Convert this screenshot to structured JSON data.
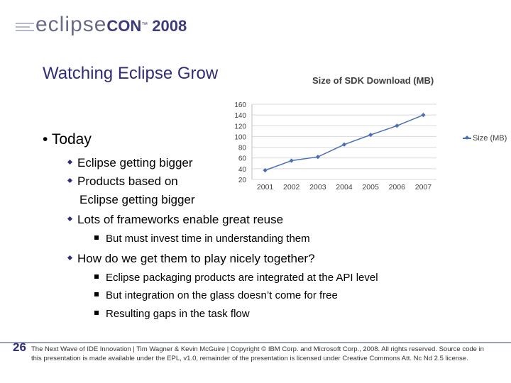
{
  "header": {
    "logo_eclipse": "eclipse",
    "logo_con": "CON",
    "logo_tm": "™",
    "logo_year": "2008"
  },
  "slide": {
    "title": "Watching Eclipse Grow",
    "bullets": {
      "today": "Today",
      "sub1": "Eclipse getting bigger",
      "sub2_line1": "Products based on",
      "sub2_line2": "Eclipse getting bigger",
      "sub3": "Lots of frameworks enable great reuse",
      "sub3_a": "But must invest time in understanding them",
      "sub4": "How do we get them to play nicely together?",
      "sub4_a": "Eclipse packaging products are integrated at the API level",
      "sub4_b": "But integration on the glass doesn’t come for free",
      "sub4_c": "Resulting gaps in the task flow"
    }
  },
  "chart_data": {
    "type": "line",
    "title": "Size of SDK Download (MB)",
    "categories": [
      "2001",
      "2002",
      "2003",
      "2004",
      "2005",
      "2006",
      "2007"
    ],
    "series": [
      {
        "name": "Size (MB)",
        "values": [
          37,
          55,
          62,
          85,
          103,
          120,
          140
        ]
      }
    ],
    "yticks": [
      20,
      40,
      60,
      80,
      100,
      120,
      140,
      160
    ],
    "ylim": [
      20,
      160
    ],
    "grid": true,
    "legend": "right",
    "color": "#4a6fb5"
  },
  "footer": {
    "page_number": "26",
    "line1": "The Next Wave of IDE Innovation | Tim Wagner & Kevin McGuire | Copyright © IBM Corp. and Microsoft Corp., 2008. All rights reserved. Source code in",
    "line2": "this presentation is made available under the EPL, v1.0, remainder of the presentation is licensed under Creative Commons Att. Nc Nd 2.5 license."
  }
}
